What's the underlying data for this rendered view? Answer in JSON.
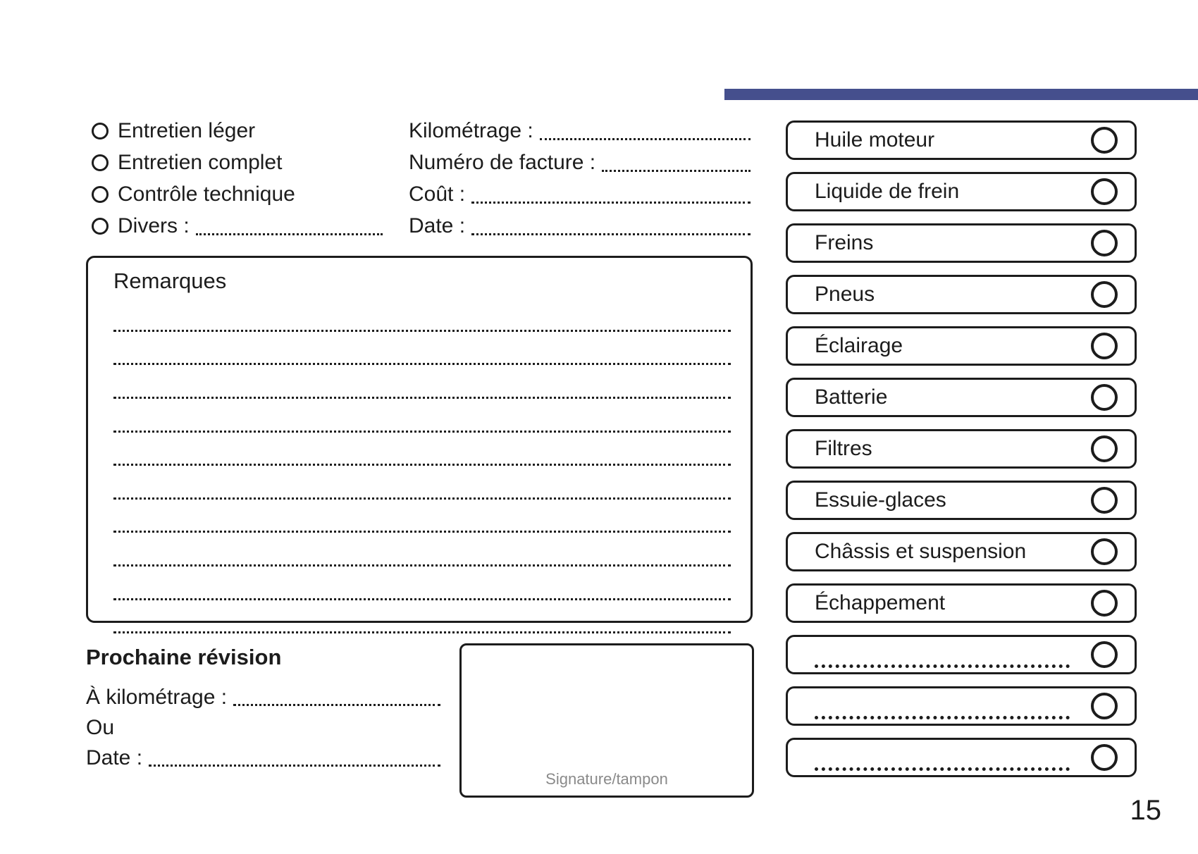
{
  "page": {
    "number": "15"
  },
  "colors": {
    "accent": "#454f8d",
    "ink": "#1c1c1c",
    "muted": "#8a8a8a"
  },
  "service_options": [
    {
      "label": "Entretien léger"
    },
    {
      "label": "Entretien complet"
    },
    {
      "label": "Contrôle technique"
    },
    {
      "label": "Divers :"
    }
  ],
  "invoice_fields": [
    {
      "label": "Kilométrage :"
    },
    {
      "label": "Numéro de facture :"
    },
    {
      "label": "Coût :"
    },
    {
      "label": "Date :"
    }
  ],
  "remarks": {
    "title": "Remarques"
  },
  "next_service": {
    "title": "Prochaine révision",
    "km_label": "À kilométrage :",
    "or_label": "Ou",
    "date_label": "Date :"
  },
  "signature": {
    "label": "Signature/tampon"
  },
  "checklist": [
    {
      "label": "Huile moteur"
    },
    {
      "label": "Liquide de frein"
    },
    {
      "label": "Freins"
    },
    {
      "label": "Pneus"
    },
    {
      "label": "Éclairage"
    },
    {
      "label": "Batterie"
    },
    {
      "label": "Filtres"
    },
    {
      "label": "Essuie-glaces"
    },
    {
      "label": "Châssis et suspension"
    },
    {
      "label": "Échappement"
    },
    {
      "label": ""
    },
    {
      "label": ""
    },
    {
      "label": ""
    }
  ]
}
